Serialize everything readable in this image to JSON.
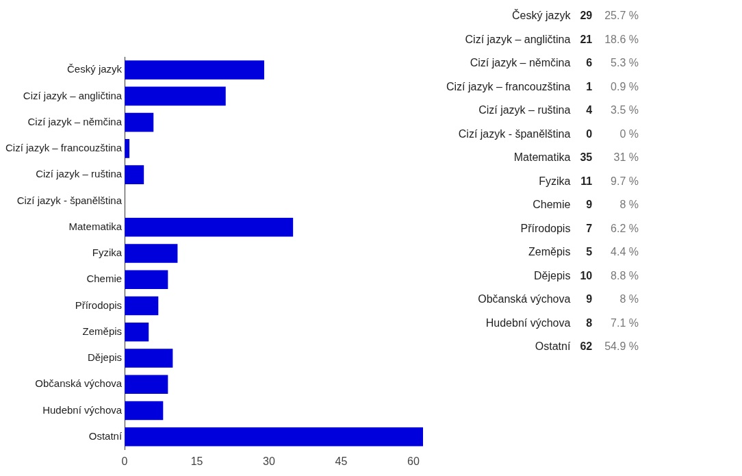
{
  "chart_data": [
    {
      "type": "bar",
      "orientation": "horizontal",
      "categories": [
        "Český jazyk",
        "Cizí jazyk – angličtina",
        "Cizí jazyk – němčina",
        "Cizí jazyk – francouzština",
        "Cizí jazyk – ruština",
        "Cizí jazyk - španělština",
        "Matematika",
        "Fyzika",
        "Chemie",
        "Přírodopis",
        "Zeměpis",
        "Dějepis",
        "Občanská výchova",
        "Hudební výchova",
        "Ostatní"
      ],
      "values": [
        29,
        21,
        6,
        1,
        4,
        0,
        35,
        11,
        9,
        7,
        5,
        10,
        9,
        8,
        62
      ],
      "color": "#0000dd",
      "xlim": [
        0,
        62
      ],
      "xticks": [
        0,
        15,
        30,
        45,
        60
      ],
      "grid": false,
      "legend": false
    },
    {
      "type": "other",
      "categories": [
        "Český jazyk",
        "Cizí jazyk – angličtina",
        "Cizí jazyk – němčina",
        "Cizí jazyk – francouzština",
        "Cizí jazyk – ruština",
        "Cizí jazyk - španělština",
        "Matematika",
        "Fyzika",
        "Chemie",
        "Přírodopis",
        "Zeměpis",
        "Dějepis",
        "Občanská výchova",
        "Hudební výchova",
        "Ostatní"
      ],
      "series": [
        {
          "values": [
            29,
            21,
            6,
            1,
            4,
            0,
            35,
            11,
            9,
            7,
            5,
            10,
            9,
            8,
            62
          ]
        },
        {
          "values": [
            25.7,
            18.6,
            5.3,
            0.9,
            3.5,
            0,
            31,
            9.7,
            8,
            6.2,
            4.4,
            8.8,
            8,
            7.1,
            54.9
          ],
          "value_labels": [
            "25.7 %",
            "18.6 %",
            "5.3 %",
            "0.9 %",
            "3.5 %",
            "0 %",
            "31 %",
            "9.7 %",
            "8 %",
            "6.2 %",
            "4.4 %",
            "8.8 %",
            "8 %",
            "7.1 %",
            "54.9 %"
          ]
        }
      ],
      "data_labels": true
    }
  ]
}
